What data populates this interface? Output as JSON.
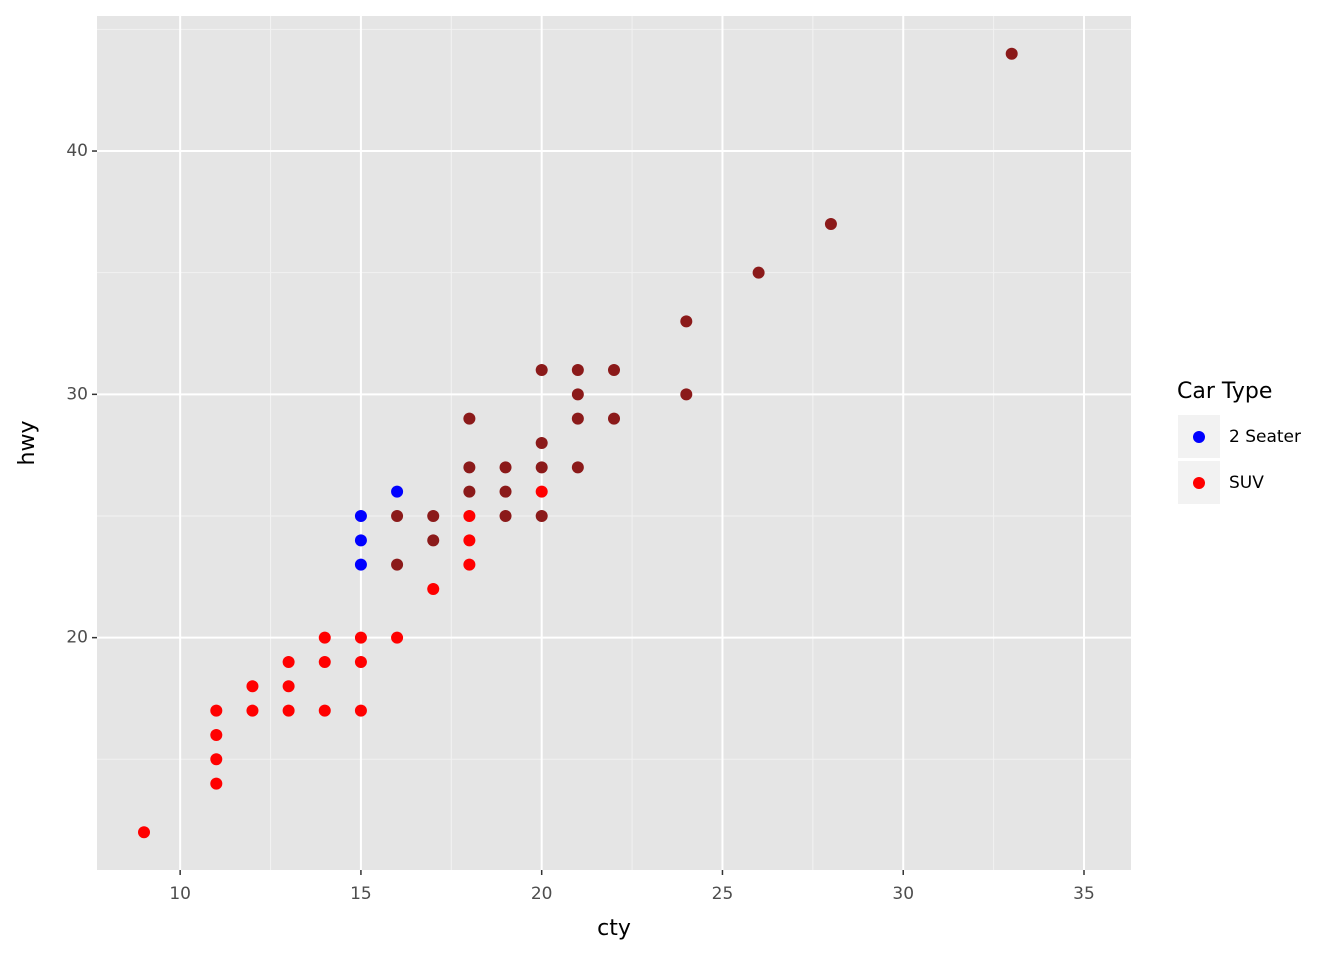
{
  "chart_data": {
    "type": "scatter",
    "xlabel": "cty",
    "ylabel": "hwy",
    "xlim": [
      7.7,
      36.3
    ],
    "ylim": [
      10.45,
      45.55
    ],
    "xticks": [
      10,
      15,
      20,
      25,
      30,
      35
    ],
    "yticks": [
      20,
      30,
      40
    ],
    "xminor": [
      12.5,
      17.5,
      22.5,
      27.5,
      32.5
    ],
    "yminor": [
      15,
      25,
      35,
      45
    ],
    "grid": true,
    "legend_title": "Car Type",
    "legend_position": "right",
    "series": [
      {
        "color": "#8b1a1a",
        "x": [
          33,
          28,
          26,
          24,
          24,
          21,
          22,
          20,
          21,
          21,
          22,
          18,
          20,
          18,
          19,
          20,
          21,
          18,
          19,
          16,
          17,
          19,
          20,
          17,
          16
        ],
        "y": [
          44,
          37,
          35,
          33,
          30,
          31,
          31,
          31,
          30,
          29,
          29,
          29,
          28,
          27,
          27,
          27,
          27,
          26,
          26,
          25,
          25,
          25,
          25,
          24,
          23
        ]
      },
      {
        "name": "2 Seater",
        "color": "#0000ff",
        "x": [
          15,
          15,
          15,
          16
        ],
        "y": [
          25,
          24,
          23,
          26
        ]
      },
      {
        "name": "SUV",
        "color": "#ff0000",
        "x": [
          9,
          11,
          11,
          11,
          11,
          12,
          12,
          13,
          13,
          13,
          14,
          14,
          14,
          15,
          15,
          15,
          16,
          17,
          18,
          18,
          18,
          20
        ],
        "y": [
          12,
          14,
          15,
          16,
          17,
          17,
          18,
          17,
          18,
          19,
          17,
          19,
          20,
          17,
          19,
          20,
          20,
          22,
          23,
          24,
          25,
          26
        ]
      }
    ]
  }
}
